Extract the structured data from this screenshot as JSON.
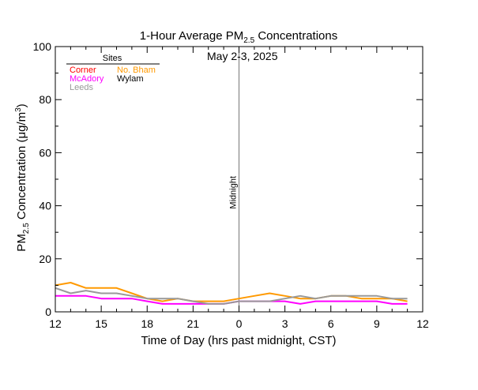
{
  "chart_data": {
    "type": "line",
    "title_main": "1-Hour Average PM",
    "title_sub": "2.5",
    "title_rest": " Concentrations",
    "date_label": "May 2-3, 2025",
    "xlabel": "Time of Day (hrs past midnight, CST)",
    "ylabel_pre": "PM",
    "ylabel_sub": "2.5",
    "ylabel_mid": " Concentration (",
    "ylabel_mu": "μ",
    "ylabel_unit": "g/m",
    "ylabel_sup": "3",
    "ylabel_end": ")",
    "midnight_label": "Midnight",
    "legend_header": "Sites",
    "xlim": [
      12,
      36
    ],
    "ylim": [
      0,
      100
    ],
    "x_ticks": [
      12,
      15,
      18,
      21,
      24,
      27,
      30,
      33,
      36
    ],
    "x_tick_labels": [
      "12",
      "15",
      "18",
      "21",
      "0",
      "3",
      "6",
      "9",
      "12"
    ],
    "y_ticks": [
      0,
      20,
      40,
      60,
      80,
      100
    ],
    "y_tick_labels": [
      "0",
      "20",
      "40",
      "60",
      "80",
      "100"
    ],
    "midnight_x": 24,
    "hours": [
      12,
      13,
      14,
      15,
      16,
      17,
      18,
      19,
      20,
      21,
      22,
      23,
      24,
      25,
      26,
      27,
      28,
      29,
      30,
      31,
      32,
      33,
      34,
      35
    ],
    "series": [
      {
        "name": "Corner",
        "color": "#ff0000",
        "values": []
      },
      {
        "name": "No. Bham",
        "color": "#ff9900",
        "values": [
          10,
          11,
          9,
          9,
          9,
          7,
          5,
          4,
          5,
          4,
          4,
          4,
          5,
          6,
          7,
          6,
          5,
          5,
          6,
          6,
          5,
          5,
          5,
          4
        ]
      },
      {
        "name": "McAdory",
        "color": "#ff00ff",
        "values": [
          6,
          6,
          6,
          5,
          5,
          5,
          4,
          3,
          3,
          3,
          3,
          3,
          4,
          4,
          4,
          4,
          3,
          4,
          4,
          4,
          4,
          4,
          3,
          3
        ]
      },
      {
        "name": "Wylam",
        "color": "#000000",
        "values": []
      },
      {
        "name": "Leeds",
        "color": "#999999",
        "values": [
          9,
          7,
          8,
          7,
          7,
          6,
          5,
          5,
          5,
          4,
          3,
          3,
          4,
          4,
          4,
          5,
          6,
          5,
          6,
          6,
          6,
          6,
          5,
          5
        ]
      }
    ],
    "legend_order": [
      0,
      1,
      2,
      3,
      4
    ],
    "grid": false,
    "legend_position": "top-left"
  }
}
